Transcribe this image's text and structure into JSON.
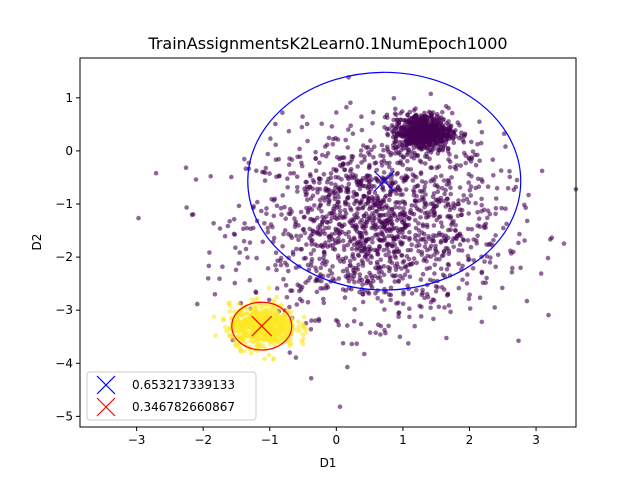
{
  "chart_data": {
    "type": "scatter",
    "title": "TrainAssignmentsK2Learn0.1NumEpoch1000",
    "xlabel": "D1",
    "ylabel": "D2",
    "xlim": [
      -3.85,
      3.6
    ],
    "ylim": [
      -5.2,
      1.75
    ],
    "x_ticks": [
      -3,
      -2,
      -1,
      0,
      1,
      2,
      3
    ],
    "y_ticks": [
      1,
      0,
      -1,
      -2,
      -3,
      -4,
      -5
    ],
    "grid": false,
    "legend_position": "lower-left",
    "colors": {
      "cluster_purple": "#440154",
      "cluster_yellow": "#fde725",
      "component_blue": "#0000ff",
      "component_red": "#ff0000"
    },
    "clusters": [
      {
        "color": "#440154",
        "center": [
          0.6,
          -1.4
        ],
        "spread": [
          0.95,
          0.85
        ],
        "count": 1500
      },
      {
        "color": "#440154",
        "center": [
          1.3,
          0.35
        ],
        "spread": [
          0.22,
          0.18
        ],
        "count": 700
      },
      {
        "color": "#fde725",
        "center": [
          -1.1,
          -3.3
        ],
        "spread": [
          0.25,
          0.2
        ],
        "count": 650
      }
    ],
    "components": [
      {
        "label": "0.653217339133",
        "color": "#0000ff",
        "mean": [
          0.72,
          -0.57
        ],
        "ellipse_rx": 2.05,
        "ellipse_ry": 2.05
      },
      {
        "label": "0.346782660867",
        "color": "#ff0000",
        "mean": [
          -1.12,
          -3.3
        ],
        "ellipse_rx": 0.45,
        "ellipse_ry": 0.45
      }
    ]
  }
}
